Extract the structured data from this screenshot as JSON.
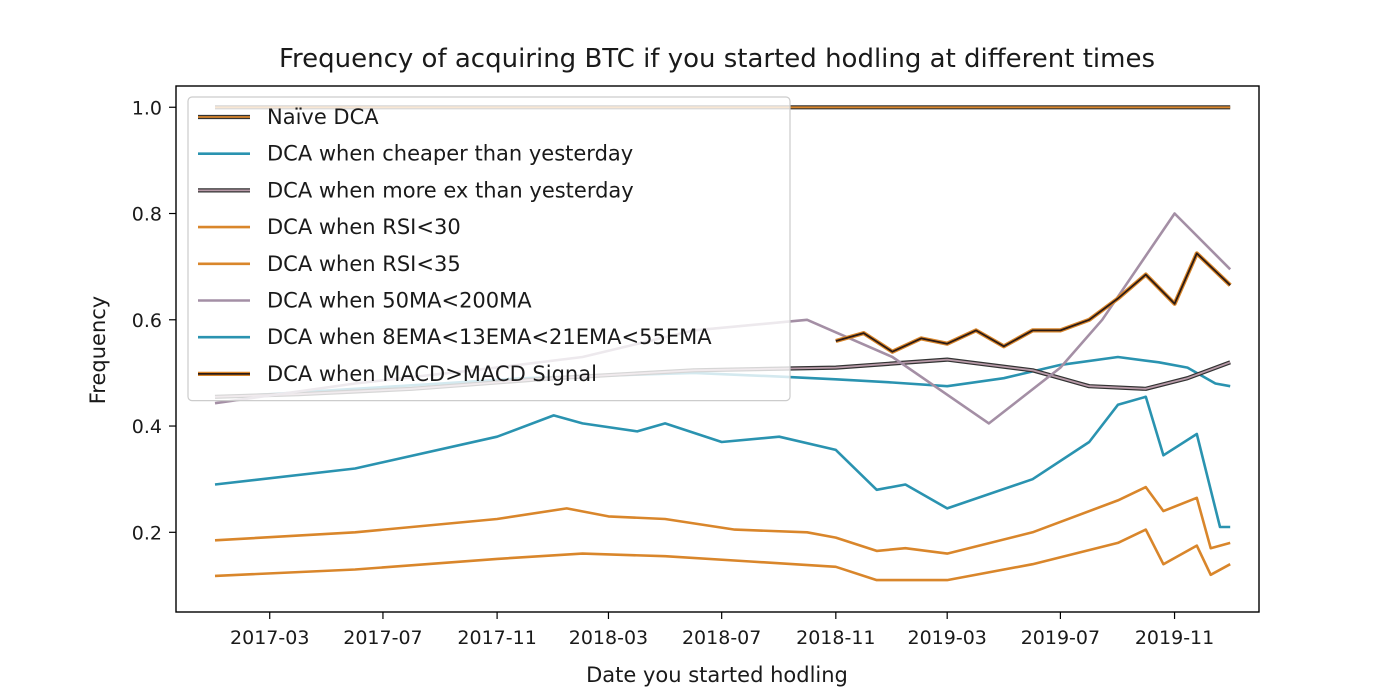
{
  "chart_data": {
    "type": "line",
    "title": "Frequency of acquiring BTC if you started hodling at different times",
    "xlabel": "Date you started hodling",
    "ylabel": "Frequency",
    "x_ticks": [
      "2017-03",
      "2017-07",
      "2017-11",
      "2018-03",
      "2018-07",
      "2018-11",
      "2019-03",
      "2019-07",
      "2019-11"
    ],
    "y_ticks": [
      0.2,
      0.4,
      0.6,
      0.8,
      1.0
    ],
    "y_tick_labels": [
      "0.2",
      "0.4",
      "0.6",
      "0.8",
      "1.0"
    ],
    "xlim": [
      "2016-11-20",
      "2020-01-31"
    ],
    "ylim": [
      0.05,
      1.04
    ],
    "grid": false,
    "legend_position": "upper-left",
    "series": [
      {
        "name": "Naïve DCA",
        "color": "#d9862b",
        "outline": true,
        "points": [
          [
            "2017-01-01",
            1.0
          ],
          [
            "2019-12-31",
            1.0
          ]
        ]
      },
      {
        "name": "DCA when cheaper than yesterday",
        "color": "#2a93b0",
        "points": [
          [
            "2017-01-01",
            0.455
          ],
          [
            "2017-03-01",
            0.46
          ],
          [
            "2017-06-01",
            0.47
          ],
          [
            "2017-09-01",
            0.48
          ],
          [
            "2017-12-01",
            0.49
          ],
          [
            "2018-03-01",
            0.495
          ],
          [
            "2018-06-01",
            0.5
          ],
          [
            "2018-09-01",
            0.493
          ],
          [
            "2018-11-01",
            0.488
          ],
          [
            "2019-01-01",
            0.482
          ],
          [
            "2019-03-01",
            0.475
          ],
          [
            "2019-05-01",
            0.49
          ],
          [
            "2019-07-01",
            0.515
          ],
          [
            "2019-09-01",
            0.53
          ],
          [
            "2019-10-15",
            0.52
          ],
          [
            "2019-11-15",
            0.51
          ],
          [
            "2019-12-15",
            0.48
          ],
          [
            "2019-12-31",
            0.475
          ]
        ]
      },
      {
        "name": "DCA when more ex than yesterday",
        "color": "#b89aa8",
        "outline": true,
        "points": [
          [
            "2017-01-01",
            0.455
          ],
          [
            "2017-04-01",
            0.46
          ],
          [
            "2017-08-01",
            0.47
          ],
          [
            "2018-01-01",
            0.49
          ],
          [
            "2018-06-01",
            0.505
          ],
          [
            "2018-11-01",
            0.51
          ],
          [
            "2019-03-01",
            0.525
          ],
          [
            "2019-06-01",
            0.505
          ],
          [
            "2019-08-01",
            0.475
          ],
          [
            "2019-10-01",
            0.47
          ],
          [
            "2019-11-15",
            0.49
          ],
          [
            "2019-12-31",
            0.52
          ]
        ]
      },
      {
        "name": "DCA when RSI<30",
        "color": "#d9862b",
        "points": [
          [
            "2017-01-01",
            0.118
          ],
          [
            "2017-06-01",
            0.13
          ],
          [
            "2017-11-01",
            0.15
          ],
          [
            "2018-02-01",
            0.16
          ],
          [
            "2018-05-01",
            0.155
          ],
          [
            "2018-08-01",
            0.145
          ],
          [
            "2018-11-01",
            0.135
          ],
          [
            "2018-12-15",
            0.11
          ],
          [
            "2019-03-01",
            0.11
          ],
          [
            "2019-06-01",
            0.14
          ],
          [
            "2019-09-01",
            0.18
          ],
          [
            "2019-10-01",
            0.205
          ],
          [
            "2019-10-20",
            0.14
          ],
          [
            "2019-11-25",
            0.175
          ],
          [
            "2019-12-10",
            0.12
          ],
          [
            "2019-12-31",
            0.14
          ]
        ]
      },
      {
        "name": "DCA when RSI<35",
        "color": "#d9862b",
        "points": [
          [
            "2017-01-01",
            0.185
          ],
          [
            "2017-06-01",
            0.2
          ],
          [
            "2017-11-01",
            0.225
          ],
          [
            "2018-01-15",
            0.245
          ],
          [
            "2018-03-01",
            0.23
          ],
          [
            "2018-05-01",
            0.225
          ],
          [
            "2018-07-15",
            0.205
          ],
          [
            "2018-10-01",
            0.2
          ],
          [
            "2018-11-01",
            0.19
          ],
          [
            "2018-12-15",
            0.165
          ],
          [
            "2019-01-15",
            0.17
          ],
          [
            "2019-03-01",
            0.16
          ],
          [
            "2019-06-01",
            0.2
          ],
          [
            "2019-09-01",
            0.26
          ],
          [
            "2019-10-01",
            0.285
          ],
          [
            "2019-10-20",
            0.24
          ],
          [
            "2019-11-25",
            0.265
          ],
          [
            "2019-12-10",
            0.17
          ],
          [
            "2019-12-31",
            0.18
          ]
        ]
      },
      {
        "name": "DCA when 50MA<200MA",
        "color": "#a48fa5",
        "points": [
          [
            "2017-01-01",
            0.443
          ],
          [
            "2017-06-01",
            0.48
          ],
          [
            "2017-11-01",
            0.51
          ],
          [
            "2018-02-01",
            0.53
          ],
          [
            "2018-06-01",
            0.58
          ],
          [
            "2018-10-01",
            0.6
          ],
          [
            "2019-01-01",
            0.53
          ],
          [
            "2019-04-15",
            0.405
          ],
          [
            "2019-07-01",
            0.51
          ],
          [
            "2019-08-15",
            0.6
          ],
          [
            "2019-11-01",
            0.8
          ],
          [
            "2019-12-31",
            0.695
          ]
        ]
      },
      {
        "name": "DCA when 8EMA<13EMA<21EMA<55EMA",
        "color": "#2a93b0",
        "points": [
          [
            "2017-01-01",
            0.29
          ],
          [
            "2017-06-01",
            0.32
          ],
          [
            "2017-11-01",
            0.38
          ],
          [
            "2018-01-01",
            0.42
          ],
          [
            "2018-02-01",
            0.405
          ],
          [
            "2018-04-01",
            0.39
          ],
          [
            "2018-05-01",
            0.405
          ],
          [
            "2018-07-01",
            0.37
          ],
          [
            "2018-09-01",
            0.38
          ],
          [
            "2018-11-01",
            0.355
          ],
          [
            "2018-12-15",
            0.28
          ],
          [
            "2019-01-15",
            0.29
          ],
          [
            "2019-03-01",
            0.245
          ],
          [
            "2019-06-01",
            0.3
          ],
          [
            "2019-08-01",
            0.37
          ],
          [
            "2019-09-01",
            0.44
          ],
          [
            "2019-10-01",
            0.455
          ],
          [
            "2019-10-20",
            0.345
          ],
          [
            "2019-11-25",
            0.385
          ],
          [
            "2019-12-20",
            0.21
          ],
          [
            "2019-12-31",
            0.21
          ]
        ]
      },
      {
        "name": "DCA when MACD>MACD Signal",
        "color": "#2b1a14",
        "outline_color": "#d9862b",
        "points": [
          [
            "2018-11-01",
            0.56
          ],
          [
            "2018-12-01",
            0.575
          ],
          [
            "2019-01-01",
            0.54
          ],
          [
            "2019-02-01",
            0.565
          ],
          [
            "2019-03-01",
            0.555
          ],
          [
            "2019-04-01",
            0.58
          ],
          [
            "2019-05-01",
            0.55
          ],
          [
            "2019-06-01",
            0.58
          ],
          [
            "2019-07-01",
            0.58
          ],
          [
            "2019-08-01",
            0.6
          ],
          [
            "2019-09-01",
            0.64
          ],
          [
            "2019-10-01",
            0.685
          ],
          [
            "2019-11-01",
            0.63
          ],
          [
            "2019-11-25",
            0.725
          ],
          [
            "2019-12-31",
            0.665
          ]
        ]
      }
    ]
  }
}
